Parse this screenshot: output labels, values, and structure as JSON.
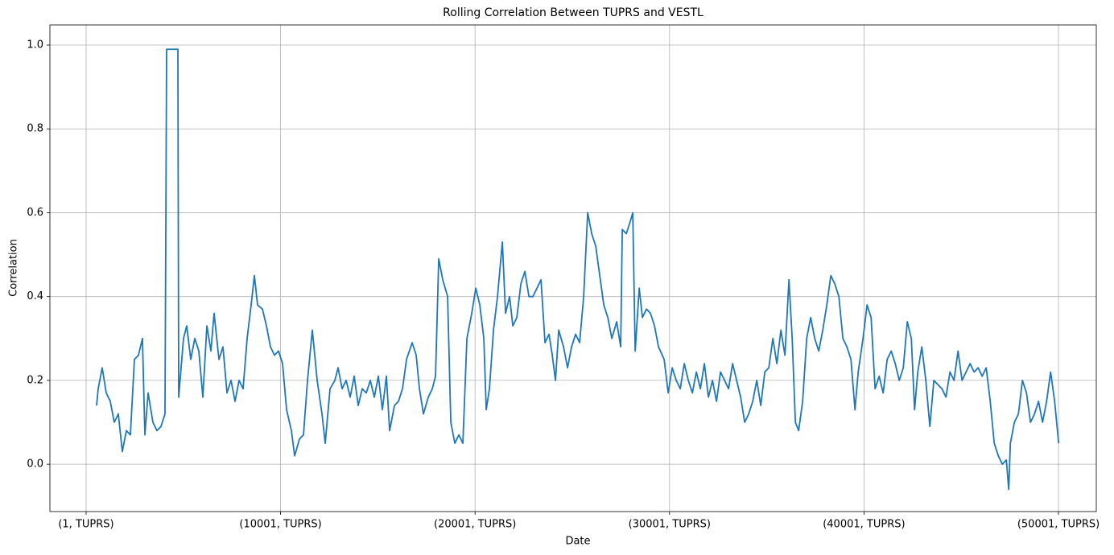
{
  "chart_data": {
    "type": "line",
    "title": "Rolling Correlation Between TUPRS and VESTL",
    "x_label": "Date",
    "y_label": "Correlation",
    "color": "#1f77b4",
    "grid": true,
    "xlim": [
      -1861,
      51946
    ],
    "ylim": [
      -0.113,
      1.048
    ],
    "xticks": [
      {
        "value": 1,
        "label": "(1, TUPRS)"
      },
      {
        "value": 10001,
        "label": "(10001, TUPRS)"
      },
      {
        "value": 20001,
        "label": "(20001, TUPRS)"
      },
      {
        "value": 30001,
        "label": "(30001, TUPRS)"
      },
      {
        "value": 40001,
        "label": "(40001, TUPRS)"
      },
      {
        "value": 50001,
        "label": "(50001, TUPRS)"
      }
    ],
    "yticks": [
      {
        "value": 0,
        "label": "0.0"
      },
      0.2,
      0.4,
      0.6,
      0.8,
      {
        "value": 1,
        "label": "1.0"
      }
    ],
    "x": [
      538,
      621,
      828,
      1035,
      1242,
      1449,
      1656,
      1863,
      2070,
      2277,
      2484,
      2691,
      2898,
      3022,
      3188,
      3436,
      3643,
      3850,
      4057,
      4140,
      4471,
      4720,
      4761,
      5009,
      5175,
      5382,
      5589,
      5796,
      6003,
      6210,
      6417,
      6583,
      6831,
      7038,
      7245,
      7452,
      7659,
      7866,
      8073,
      8280,
      8487,
      8653,
      8818,
      9067,
      9274,
      9481,
      9688,
      9895,
      10102,
      10309,
      10557,
      10723,
      10971,
      11178,
      11385,
      11633,
      11882,
      12130,
      12296,
      12544,
      12793,
      12958,
      13165,
      13372,
      13579,
      13786,
      13993,
      14200,
      14407,
      14614,
      14821,
      15028,
      15235,
      15442,
      15608,
      15856,
      16063,
      16270,
      16477,
      16767,
      16974,
      17140,
      17347,
      17595,
      17802,
      17968,
      18133,
      18340,
      18589,
      18754,
      18961,
      19168,
      19375,
      19582,
      19831,
      20038,
      20245,
      20452,
      20576,
      20741,
      20948,
      21155,
      21404,
      21569,
      21776,
      21942,
      22149,
      22356,
      22563,
      22770,
      22977,
      23184,
      23391,
      23598,
      23805,
      23971,
      24136,
      24302,
      24550,
      24757,
      24964,
      25171,
      25378,
      25585,
      25792,
      25999,
      26206,
      26413,
      26620,
      26827,
      27034,
      27283,
      27490,
      27572,
      27779,
      27986,
      28111,
      28235,
      28442,
      28607,
      28814,
      29021,
      29228,
      29435,
      29725,
      29932,
      30139,
      30346,
      30553,
      30760,
      30967,
      31174,
      31381,
      31588,
      31795,
      32002,
      32209,
      32416,
      32623,
      32830,
      33037,
      33244,
      33451,
      33658,
      33865,
      34072,
      34279,
      34486,
      34693,
      34900,
      35107,
      35314,
      35521,
      35728,
      35935,
      36142,
      36308,
      36473,
      36639,
      36846,
      37053,
      37260,
      37467,
      37674,
      37881,
      38088,
      38295,
      38502,
      38709,
      38916,
      39123,
      39330,
      39537,
      39703,
      39951,
      40158,
      40365,
      40572,
      40779,
      40986,
      41193,
      41400,
      41607,
      41814,
      42021,
      42228,
      42435,
      42601,
      42766,
      42973,
      43180,
      43387,
      43594,
      43801,
      44008,
      44215,
      44422,
      44629,
      44836,
      45043,
      45250,
      45457,
      45664,
      45871,
      46078,
      46285,
      46492,
      46699,
      46906,
      47113,
      47320,
      47444,
      47527,
      47734,
      47941,
      48148,
      48355,
      48562,
      48769,
      48976,
      49183,
      49390,
      49597,
      49804,
      50011
    ],
    "values": [
      0.14,
      0.18,
      0.23,
      0.17,
      0.15,
      0.1,
      0.12,
      0.03,
      0.08,
      0.07,
      0.25,
      0.26,
      0.3,
      0.07,
      0.17,
      0.1,
      0.08,
      0.09,
      0.12,
      0.99,
      0.99,
      0.99,
      0.16,
      0.3,
      0.33,
      0.25,
      0.3,
      0.27,
      0.16,
      0.33,
      0.27,
      0.36,
      0.25,
      0.28,
      0.17,
      0.2,
      0.15,
      0.2,
      0.18,
      0.3,
      0.38,
      0.45,
      0.38,
      0.37,
      0.33,
      0.28,
      0.26,
      0.27,
      0.24,
      0.13,
      0.08,
      0.02,
      0.06,
      0.07,
      0.2,
      0.32,
      0.2,
      0.12,
      0.05,
      0.18,
      0.2,
      0.23,
      0.18,
      0.2,
      0.16,
      0.21,
      0.14,
      0.18,
      0.17,
      0.2,
      0.16,
      0.21,
      0.13,
      0.21,
      0.08,
      0.14,
      0.15,
      0.18,
      0.25,
      0.29,
      0.26,
      0.18,
      0.12,
      0.16,
      0.18,
      0.21,
      0.49,
      0.44,
      0.4,
      0.1,
      0.05,
      0.07,
      0.05,
      0.3,
      0.36,
      0.42,
      0.38,
      0.3,
      0.13,
      0.18,
      0.32,
      0.4,
      0.53,
      0.36,
      0.4,
      0.33,
      0.35,
      0.43,
      0.46,
      0.4,
      0.4,
      0.42,
      0.44,
      0.29,
      0.31,
      0.26,
      0.2,
      0.32,
      0.28,
      0.23,
      0.28,
      0.31,
      0.29,
      0.4,
      0.6,
      0.55,
      0.52,
      0.45,
      0.38,
      0.35,
      0.3,
      0.34,
      0.28,
      0.56,
      0.55,
      0.58,
      0.6,
      0.27,
      0.42,
      0.35,
      0.37,
      0.36,
      0.33,
      0.28,
      0.25,
      0.17,
      0.23,
      0.2,
      0.18,
      0.24,
      0.2,
      0.17,
      0.22,
      0.18,
      0.24,
      0.16,
      0.2,
      0.15,
      0.22,
      0.2,
      0.18,
      0.24,
      0.2,
      0.16,
      0.1,
      0.12,
      0.15,
      0.2,
      0.14,
      0.22,
      0.23,
      0.3,
      0.24,
      0.32,
      0.26,
      0.44,
      0.3,
      0.1,
      0.08,
      0.15,
      0.3,
      0.35,
      0.3,
      0.27,
      0.32,
      0.38,
      0.45,
      0.43,
      0.4,
      0.3,
      0.28,
      0.25,
      0.13,
      0.22,
      0.3,
      0.38,
      0.35,
      0.18,
      0.21,
      0.17,
      0.25,
      0.27,
      0.24,
      0.2,
      0.23,
      0.34,
      0.3,
      0.13,
      0.22,
      0.28,
      0.2,
      0.09,
      0.2,
      0.19,
      0.18,
      0.16,
      0.22,
      0.2,
      0.27,
      0.2,
      0.22,
      0.24,
      0.22,
      0.23,
      0.21,
      0.23,
      0.15,
      0.05,
      0.02,
      0.0,
      0.01,
      -0.06,
      0.05,
      0.1,
      0.12,
      0.2,
      0.17,
      0.1,
      0.12,
      0.15,
      0.1,
      0.15,
      0.22,
      0.15,
      0.05
    ]
  }
}
